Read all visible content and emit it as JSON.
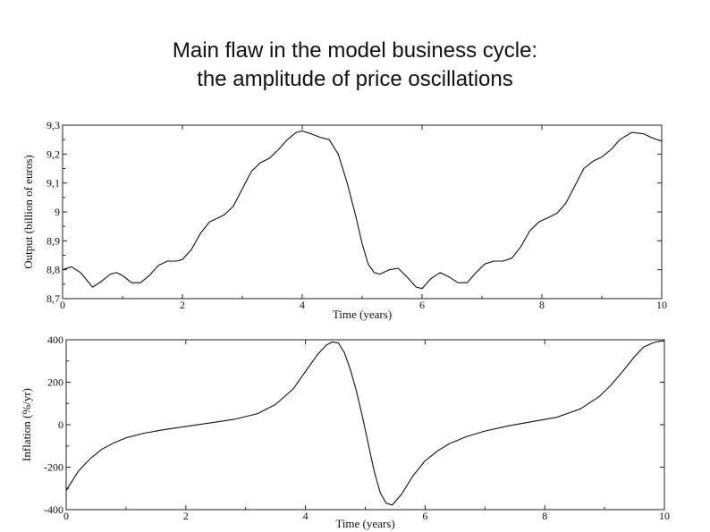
{
  "slide": {
    "title_line1": "Main flaw in the model business cycle:",
    "title_line2": "the amplitude of price oscillations"
  },
  "colors": {
    "line": "#111111",
    "frame": "#222222",
    "background": "#ffffff"
  },
  "chart_data": [
    {
      "type": "line",
      "xlabel": "Time (years)",
      "ylabel": "Output (billion of euros)",
      "xlim": [
        0,
        10
      ],
      "ylim": [
        8.7,
        9.3
      ],
      "xticks": [
        0,
        2,
        4,
        6,
        8,
        10
      ],
      "xtick_labels": [
        "0",
        "2",
        "4",
        "6",
        "8",
        "10"
      ],
      "yticks": [
        8.7,
        8.8,
        8.9,
        9.0,
        9.1,
        9.2,
        9.3
      ],
      "ytick_labels": [
        "8,7",
        "8,8",
        "8,9",
        "9",
        "9,1",
        "9,2",
        "9,3"
      ],
      "grid": false,
      "series": [
        {
          "x": [
            0,
            0.15,
            0.3,
            0.5,
            0.65,
            0.8,
            0.9,
            1.0,
            1.15,
            1.3,
            1.45,
            1.6,
            1.75,
            1.9,
            2.0,
            2.15,
            2.3,
            2.45,
            2.55,
            2.7,
            2.85,
            3.0,
            3.15,
            3.3,
            3.45,
            3.6,
            3.75,
            3.9,
            4.0,
            4.15,
            4.3,
            4.45,
            4.6,
            4.75,
            4.9,
            5.0,
            5.1,
            5.2,
            5.3,
            5.45,
            5.6,
            5.75,
            5.9,
            6.0,
            6.15,
            6.3,
            6.45,
            6.6,
            6.75,
            6.9,
            7.05,
            7.2,
            7.35,
            7.5,
            7.65,
            7.8,
            7.95,
            8.1,
            8.25,
            8.4,
            8.55,
            8.7,
            8.85,
            9.0,
            9.15,
            9.3,
            9.5,
            9.7,
            9.85,
            10.0
          ],
          "y": [
            8.8,
            8.81,
            8.79,
            8.74,
            8.76,
            8.785,
            8.79,
            8.78,
            8.755,
            8.755,
            8.78,
            8.815,
            8.83,
            8.83,
            8.835,
            8.87,
            8.925,
            8.965,
            8.975,
            8.99,
            9.02,
            9.08,
            9.14,
            9.17,
            9.185,
            9.215,
            9.25,
            9.275,
            9.28,
            9.27,
            9.258,
            9.25,
            9.2,
            9.1,
            8.98,
            8.89,
            8.82,
            8.79,
            8.785,
            8.8,
            8.805,
            8.775,
            8.74,
            8.735,
            8.77,
            8.79,
            8.775,
            8.755,
            8.755,
            8.79,
            8.82,
            8.83,
            8.83,
            8.84,
            8.88,
            8.935,
            8.965,
            8.98,
            8.995,
            9.03,
            9.09,
            9.15,
            9.175,
            9.19,
            9.215,
            9.25,
            9.275,
            9.27,
            9.255,
            9.245
          ]
        }
      ]
    },
    {
      "type": "line",
      "xlabel": "Time (years)",
      "ylabel": "Inflation (%/yr)",
      "xlim": [
        0,
        10
      ],
      "ylim": [
        -400,
        400
      ],
      "xticks": [
        0,
        2,
        4,
        6,
        8,
        10
      ],
      "xtick_labels": [
        "0",
        "2",
        "4",
        "6",
        "8",
        "10"
      ],
      "yticks": [
        -400,
        -200,
        0,
        200,
        400
      ],
      "ytick_labels": [
        "-400",
        "-200",
        "0",
        "200",
        "400"
      ],
      "grid": false,
      "series": [
        {
          "x": [
            0,
            0.2,
            0.4,
            0.6,
            0.8,
            1.0,
            1.3,
            1.6,
            2.0,
            2.4,
            2.8,
            3.2,
            3.5,
            3.8,
            4.0,
            4.2,
            4.35,
            4.45,
            4.55,
            4.65,
            4.75,
            4.85,
            4.95,
            5.05,
            5.15,
            5.25,
            5.35,
            5.45,
            5.6,
            5.8,
            6.0,
            6.2,
            6.4,
            6.7,
            7.0,
            7.4,
            7.8,
            8.2,
            8.6,
            8.9,
            9.1,
            9.3,
            9.5,
            9.65,
            9.8,
            9.9,
            10.0
          ],
          "y": [
            -310,
            -220,
            -160,
            -115,
            -85,
            -62,
            -40,
            -25,
            -8,
            8,
            25,
            52,
            95,
            170,
            250,
            330,
            375,
            390,
            385,
            340,
            260,
            160,
            40,
            -90,
            -220,
            -320,
            -370,
            -378,
            -330,
            -240,
            -170,
            -125,
            -90,
            -55,
            -30,
            -5,
            15,
            35,
            75,
            130,
            185,
            250,
            320,
            365,
            385,
            392,
            395
          ]
        }
      ]
    }
  ]
}
